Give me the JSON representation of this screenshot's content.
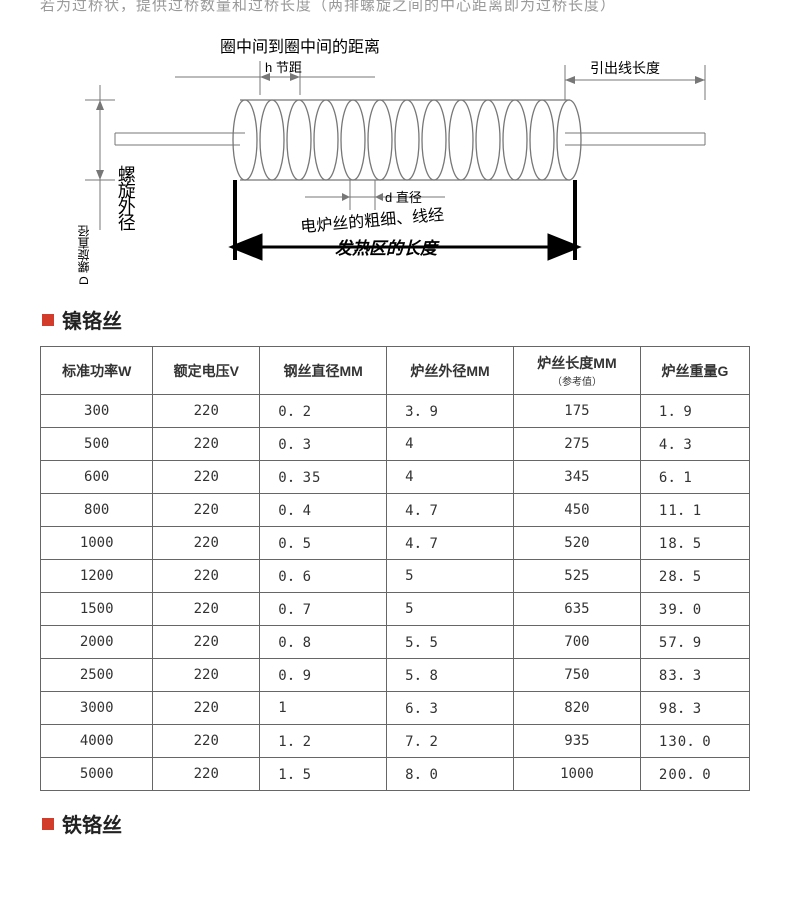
{
  "top_note": "若为过桥状，提供过桥数量和过桥长度（两排螺旋之间的中心距离即为过桥长度）",
  "diagram": {
    "top_label": "圈中间到圈中间的距离",
    "pitch_label": "h 节距",
    "lead_label": "引出线长度",
    "outer_dia_v_label": "D 螺旋直径",
    "outer_dia_label": "螺旋外径",
    "wire_dia_label": "d 直径",
    "wire_thick_label": "电炉丝的粗细、线经",
    "heat_zone_label": "发热区的长度",
    "stroke_thin": "#777",
    "stroke_thick": "#000"
  },
  "section1_title": "镍铬丝",
  "section2_title": "铁铬丝",
  "table": {
    "columns": [
      "标准功率W",
      "额定电压V",
      "钢丝直径MM",
      "炉丝外径MM",
      "炉丝长度MM",
      "炉丝重量G"
    ],
    "col_length_note": "（参考值）",
    "rows": [
      [
        "300",
        "220",
        "0．2",
        "3．9",
        "175",
        "1．9"
      ],
      [
        "500",
        "220",
        "0．3",
        "4",
        "275",
        "4．3"
      ],
      [
        "600",
        "220",
        "0．35",
        "4",
        "345",
        "6．1"
      ],
      [
        "800",
        "220",
        "0．4",
        "4．7",
        "450",
        "11．1"
      ],
      [
        "1000",
        "220",
        "0．5",
        "4．7",
        "520",
        "18．5"
      ],
      [
        "1200",
        "220",
        "0．6",
        "5",
        "525",
        "28．5"
      ],
      [
        "1500",
        "220",
        "0．7",
        "5",
        "635",
        "39．0"
      ],
      [
        "2000",
        "220",
        "0．8",
        "5．5",
        "700",
        "57．9"
      ],
      [
        "2500",
        "220",
        "0．9",
        "5．8",
        "750",
        "83．3"
      ],
      [
        "3000",
        "220",
        "1",
        "6．3",
        "820",
        "98．3"
      ],
      [
        "4000",
        "220",
        "1．2",
        "7．2",
        "935",
        "130．0"
      ],
      [
        "5000",
        "220",
        "1．5",
        "8．0",
        "1000",
        "200．0"
      ]
    ]
  }
}
